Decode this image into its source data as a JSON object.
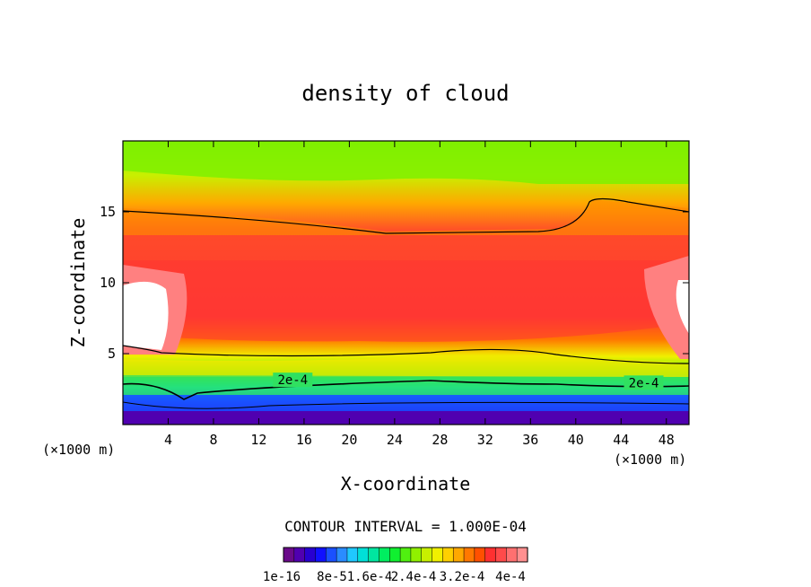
{
  "chart_data": {
    "type": "heatmap",
    "title": "density of cloud",
    "xlabel": "X-coordinate",
    "ylabel": "Z-coordinate",
    "x_unit": "(×1000 m)",
    "z_unit": "(×1000 m)",
    "xlim": [
      0,
      50
    ],
    "ylim": [
      0,
      20
    ],
    "xticks": [
      "4",
      "8",
      "12",
      "16",
      "20",
      "24",
      "28",
      "32",
      "36",
      "40",
      "44",
      "48"
    ],
    "yticks": [
      "5",
      "10",
      "15"
    ],
    "contour_interval_text": "CONTOUR INTERVAL = 1.000E-04",
    "contour_labels": [
      "2e-4",
      "2e-4"
    ],
    "colorbar_labels": [
      "1e-16",
      "8e-5",
      "1.6e-4",
      "2.4e-4",
      "3.2e-4",
      "4e-4"
    ],
    "colorbar_colors": [
      "#6a0a8a",
      "#5000b0",
      "#2800d0",
      "#1010ff",
      "#1a50ff",
      "#2a8cff",
      "#20c8ff",
      "#00e0d8",
      "#00e6a0",
      "#00ee60",
      "#10f030",
      "#50f010",
      "#90f000",
      "#c8f000",
      "#f0f000",
      "#ffd000",
      "#ffa800",
      "#ff7800",
      "#ff5000",
      "#ff3030",
      "#ff4a4a",
      "#ff7070",
      "#ff9090"
    ],
    "grid": false,
    "legend": "colorbar bottom-center"
  }
}
